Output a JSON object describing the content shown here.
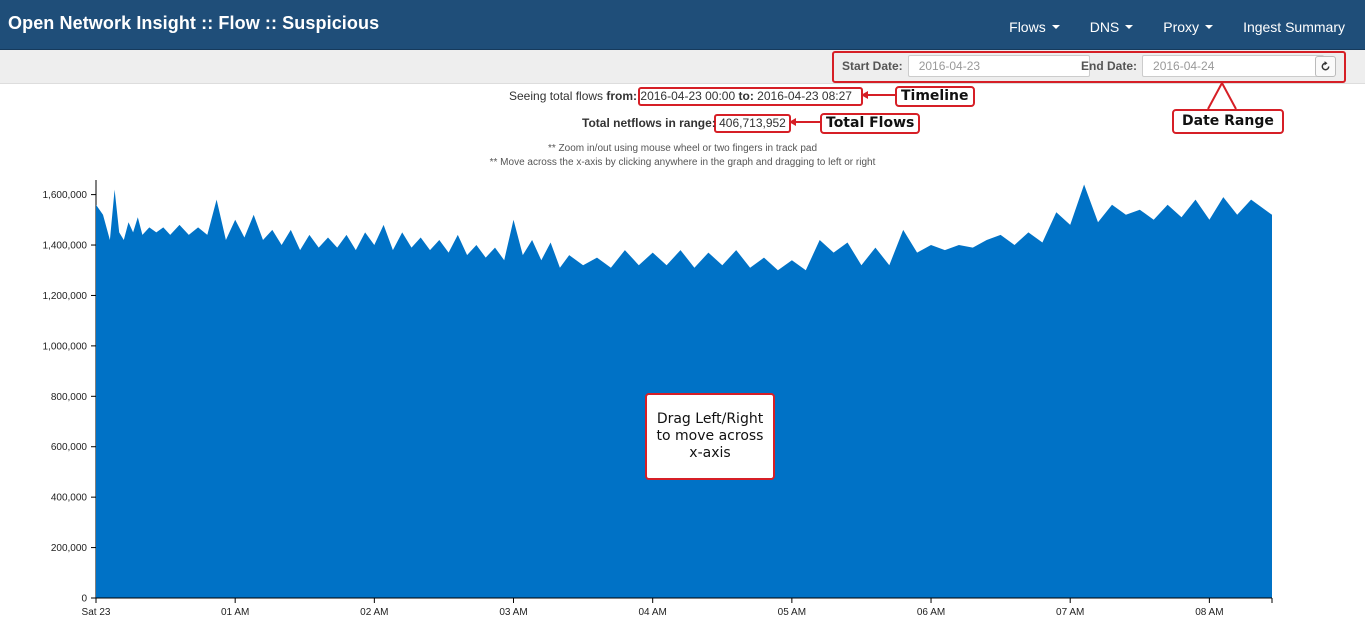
{
  "app": {
    "title": "Open Network Insight :: Flow  :: Suspicious"
  },
  "nav": {
    "items": [
      {
        "label": "Flows",
        "dropdown": true
      },
      {
        "label": "DNS",
        "dropdown": true
      },
      {
        "label": "Proxy",
        "dropdown": true
      },
      {
        "label": "Ingest Summary",
        "dropdown": false
      }
    ]
  },
  "date_range": {
    "start_label": "Start Date:",
    "start_value": "2016-04-23",
    "end_label": "End Date:",
    "end_value": "2016-04-24",
    "reload_icon": "refresh-icon"
  },
  "summary": {
    "seeing_prefix": "Seeing total flows ",
    "from_label": "from:",
    "from_value": "2016-04-23 00:00",
    "to_label": "to:",
    "to_value": "2016-04-23 08:27",
    "total_label": "Total netflows in range:",
    "total_value": "406,713,952",
    "hint_zoom": "** Zoom in/out using mouse wheel or two fingers in track pad",
    "hint_move": "** Move across the x-axis by clicking anywhere in the graph and dragging to left or right"
  },
  "annotations": {
    "timeline": "Timeline",
    "total_flows": "Total Flows",
    "date_range": "Date Range",
    "drag_hint": "Drag Left/Right to move across x-axis",
    "color": "#d61f26"
  },
  "chart_data": {
    "type": "area",
    "color": "#0072c6",
    "x_unit": "time (2016-04-23)",
    "x_range": [
      "00:00",
      "08:27"
    ],
    "ylim": [
      0,
      1650000
    ],
    "yticks": [
      0,
      200000,
      400000,
      600000,
      800000,
      1000000,
      1200000,
      1400000,
      1600000
    ],
    "ytick_labels": [
      "0",
      "200,000",
      "400,000",
      "600,000",
      "800,000",
      "1,000,000",
      "1,200,000",
      "1,400,000",
      "1,600,000"
    ],
    "xticks": [
      "Sat 23",
      "01 AM",
      "02 AM",
      "03 AM",
      "04 AM",
      "05 AM",
      "06 AM",
      "07 AM",
      "08 AM"
    ],
    "series": [
      {
        "values": [
          [
            "00:00",
            1560000
          ],
          [
            "00:03",
            1520000
          ],
          [
            "00:06",
            1420000
          ],
          [
            "00:08",
            1620000
          ],
          [
            "00:10",
            1450000
          ],
          [
            "00:12",
            1420000
          ],
          [
            "00:14",
            1490000
          ],
          [
            "00:16",
            1450000
          ],
          [
            "00:18",
            1510000
          ],
          [
            "00:20",
            1440000
          ],
          [
            "00:23",
            1470000
          ],
          [
            "00:26",
            1450000
          ],
          [
            "00:29",
            1470000
          ],
          [
            "00:32",
            1440000
          ],
          [
            "00:36",
            1480000
          ],
          [
            "00:40",
            1440000
          ],
          [
            "00:44",
            1470000
          ],
          [
            "00:48",
            1440000
          ],
          [
            "00:52",
            1580000
          ],
          [
            "00:56",
            1420000
          ],
          [
            "01:00",
            1500000
          ],
          [
            "01:04",
            1430000
          ],
          [
            "01:08",
            1520000
          ],
          [
            "01:12",
            1420000
          ],
          [
            "01:16",
            1460000
          ],
          [
            "01:20",
            1400000
          ],
          [
            "01:24",
            1460000
          ],
          [
            "01:28",
            1380000
          ],
          [
            "01:32",
            1440000
          ],
          [
            "01:36",
            1390000
          ],
          [
            "01:40",
            1430000
          ],
          [
            "01:44",
            1390000
          ],
          [
            "01:48",
            1440000
          ],
          [
            "01:52",
            1380000
          ],
          [
            "01:56",
            1450000
          ],
          [
            "02:00",
            1400000
          ],
          [
            "02:04",
            1480000
          ],
          [
            "02:08",
            1380000
          ],
          [
            "02:12",
            1450000
          ],
          [
            "02:16",
            1390000
          ],
          [
            "02:20",
            1430000
          ],
          [
            "02:24",
            1380000
          ],
          [
            "02:28",
            1420000
          ],
          [
            "02:32",
            1370000
          ],
          [
            "02:36",
            1440000
          ],
          [
            "02:40",
            1360000
          ],
          [
            "02:44",
            1400000
          ],
          [
            "02:48",
            1350000
          ],
          [
            "02:52",
            1390000
          ],
          [
            "02:56",
            1340000
          ],
          [
            "03:00",
            1500000
          ],
          [
            "03:04",
            1360000
          ],
          [
            "03:08",
            1420000
          ],
          [
            "03:12",
            1340000
          ],
          [
            "03:16",
            1410000
          ],
          [
            "03:20",
            1310000
          ],
          [
            "03:24",
            1360000
          ],
          [
            "03:30",
            1320000
          ],
          [
            "03:36",
            1350000
          ],
          [
            "03:42",
            1310000
          ],
          [
            "03:48",
            1380000
          ],
          [
            "03:54",
            1320000
          ],
          [
            "04:00",
            1370000
          ],
          [
            "04:06",
            1320000
          ],
          [
            "04:12",
            1380000
          ],
          [
            "04:18",
            1310000
          ],
          [
            "04:24",
            1370000
          ],
          [
            "04:30",
            1320000
          ],
          [
            "04:36",
            1380000
          ],
          [
            "04:42",
            1310000
          ],
          [
            "04:48",
            1350000
          ],
          [
            "04:54",
            1300000
          ],
          [
            "05:00",
            1340000
          ],
          [
            "05:06",
            1300000
          ],
          [
            "05:12",
            1420000
          ],
          [
            "05:18",
            1370000
          ],
          [
            "05:24",
            1410000
          ],
          [
            "05:30",
            1320000
          ],
          [
            "05:36",
            1390000
          ],
          [
            "05:42",
            1320000
          ],
          [
            "05:48",
            1460000
          ],
          [
            "05:54",
            1370000
          ],
          [
            "06:00",
            1400000
          ],
          [
            "06:06",
            1380000
          ],
          [
            "06:12",
            1400000
          ],
          [
            "06:18",
            1390000
          ],
          [
            "06:24",
            1420000
          ],
          [
            "06:30",
            1440000
          ],
          [
            "06:36",
            1400000
          ],
          [
            "06:42",
            1450000
          ],
          [
            "06:48",
            1410000
          ],
          [
            "06:54",
            1530000
          ],
          [
            "07:00",
            1480000
          ],
          [
            "07:06",
            1640000
          ],
          [
            "07:12",
            1490000
          ],
          [
            "07:18",
            1560000
          ],
          [
            "07:24",
            1520000
          ],
          [
            "07:30",
            1540000
          ],
          [
            "07:36",
            1500000
          ],
          [
            "07:42",
            1560000
          ],
          [
            "07:48",
            1510000
          ],
          [
            "07:54",
            1580000
          ],
          [
            "08:00",
            1500000
          ],
          [
            "08:06",
            1590000
          ],
          [
            "08:12",
            1520000
          ],
          [
            "08:18",
            1580000
          ],
          [
            "08:24",
            1540000
          ],
          [
            "08:27",
            1520000
          ]
        ]
      }
    ]
  }
}
